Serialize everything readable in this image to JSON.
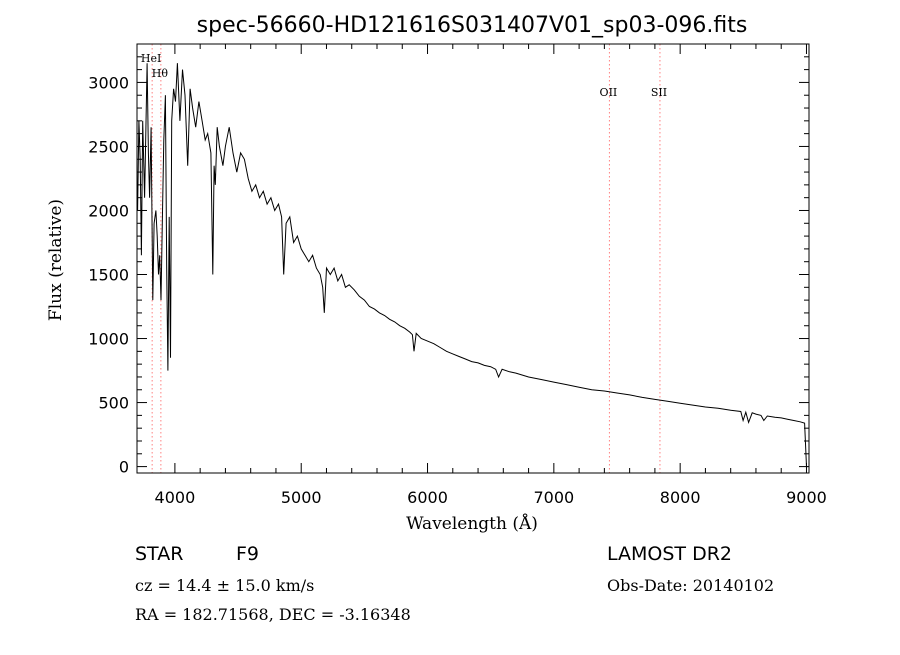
{
  "chart_data": {
    "type": "line",
    "title": "spec-56660-HD121616S031407V01_sp03-096.fits",
    "xlabel": "Wavelength (Å)",
    "ylabel": "Flux (relative)",
    "xlim": [
      3700,
      9020
    ],
    "ylim": [
      -50,
      3300
    ],
    "x_ticks": [
      4000,
      5000,
      6000,
      7000,
      8000,
      9000
    ],
    "y_ticks": [
      0,
      500,
      1000,
      1500,
      2000,
      2500,
      3000
    ],
    "grid": false,
    "line_color": "#000000",
    "marker_color": "#ff8080",
    "line_markers": [
      {
        "label": "HeI",
        "x": 3820
      },
      {
        "label": "Hθ",
        "x": 3889
      },
      {
        "label": "OII",
        "x": 7440
      },
      {
        "label": "SII",
        "x": 7840
      }
    ],
    "series": [
      {
        "x": [
          3705,
          3715,
          3725,
          3735,
          3745,
          3760,
          3770,
          3780,
          3790,
          3800,
          3812,
          3825,
          3835,
          3850,
          3860,
          3870,
          3880,
          3890,
          3900,
          3912,
          3925,
          3935,
          3945,
          3955,
          3965,
          3975,
          3990,
          4005,
          4020,
          4040,
          4060,
          4080,
          4101,
          4120,
          4140,
          4165,
          4190,
          4215,
          4240,
          4260,
          4285,
          4300,
          4310,
          4320,
          4335,
          4352,
          4380,
          4400,
          4430,
          4460,
          4490,
          4520,
          4550,
          4580,
          4610,
          4640,
          4670,
          4700,
          4730,
          4760,
          4790,
          4820,
          4845,
          4861,
          4880,
          4910,
          4940,
          4970,
          5000,
          5030,
          5060,
          5090,
          5120,
          5150,
          5170,
          5183,
          5200,
          5230,
          5260,
          5290,
          5320,
          5350,
          5380,
          5420,
          5460,
          5500,
          5540,
          5580,
          5620,
          5660,
          5700,
          5740,
          5780,
          5820,
          5860,
          5880,
          5893,
          5910,
          5950,
          6000,
          6050,
          6100,
          6150,
          6200,
          6250,
          6300,
          6350,
          6400,
          6450,
          6500,
          6540,
          6563,
          6590,
          6650,
          6700,
          6800,
          6900,
          7000,
          7100,
          7200,
          7300,
          7400,
          7500,
          7600,
          7700,
          7800,
          7900,
          8000,
          8100,
          8200,
          8300,
          8400,
          8480,
          8498,
          8520,
          8542,
          8570,
          8600,
          8640,
          8662,
          8690,
          8750,
          8800,
          8850,
          8900,
          8950,
          8985,
          9000,
          9010
        ],
        "values": [
          2000,
          2700,
          2400,
          1650,
          2700,
          2100,
          2600,
          3150,
          2450,
          2100,
          2650,
          1300,
          1900,
          2000,
          1800,
          1500,
          1650,
          1300,
          1900,
          2550,
          2900,
          1550,
          750,
          1950,
          850,
          2700,
          2950,
          2850,
          3150,
          2700,
          3100,
          2900,
          2350,
          2950,
          2800,
          2650,
          2850,
          2700,
          2550,
          2600,
          2450,
          1500,
          2350,
          2200,
          2650,
          2500,
          2350,
          2500,
          2650,
          2450,
          2300,
          2450,
          2400,
          2250,
          2150,
          2200,
          2100,
          2150,
          2050,
          2100,
          2000,
          2050,
          1950,
          1500,
          1900,
          1950,
          1750,
          1800,
          1700,
          1650,
          1600,
          1650,
          1550,
          1500,
          1400,
          1200,
          1550,
          1500,
          1550,
          1450,
          1500,
          1400,
          1420,
          1380,
          1330,
          1300,
          1250,
          1230,
          1200,
          1180,
          1150,
          1130,
          1100,
          1080,
          1050,
          1030,
          900,
          1040,
          1000,
          980,
          960,
          930,
          900,
          880,
          860,
          840,
          820,
          810,
          790,
          780,
          760,
          700,
          760,
          740,
          730,
          700,
          680,
          660,
          640,
          620,
          600,
          590,
          575,
          560,
          540,
          525,
          510,
          495,
          480,
          465,
          455,
          440,
          430,
          360,
          425,
          345,
          420,
          410,
          400,
          360,
          395,
          385,
          380,
          370,
          360,
          350,
          340,
          0,
          0
        ]
      }
    ]
  },
  "info": {
    "object_type": "STAR",
    "subclass": "F9",
    "survey": "LAMOST DR2",
    "redshift": "cz = 14.4 ± 15.0 km/s",
    "obs_date": "Obs-Date: 20140102",
    "coords": "RA = 182.71568, DEC =  -3.16348"
  }
}
